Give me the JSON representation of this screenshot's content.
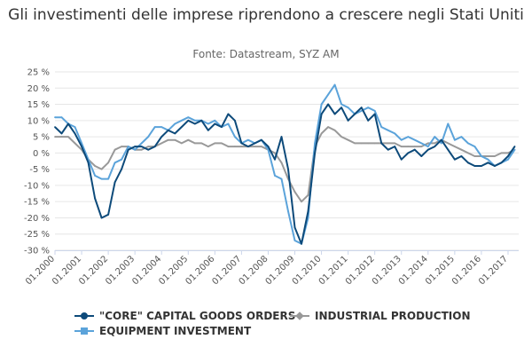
{
  "title": "Gli investimenti delle imprese riprendono a crescere negli Stati Uniti",
  "subtitle": "Fonte: Datastream, SYZ AM",
  "chart_data": {
    "type": "line",
    "title": "Gli investimenti delle imprese riprendono a crescere negli Stati Uniti",
    "subtitle": "Fonte: Datastream, SYZ AM",
    "x": [
      2000.0,
      2000.25,
      2000.5,
      2000.75,
      2001.0,
      2001.25,
      2001.5,
      2001.75,
      2002.0,
      2002.25,
      2002.5,
      2002.75,
      2003.0,
      2003.25,
      2003.5,
      2003.75,
      2004.0,
      2004.25,
      2004.5,
      2004.75,
      2005.0,
      2005.25,
      2005.5,
      2005.75,
      2006.0,
      2006.25,
      2006.5,
      2006.75,
      2007.0,
      2007.25,
      2007.5,
      2007.75,
      2008.0,
      2008.25,
      2008.5,
      2008.75,
      2009.0,
      2009.25,
      2009.5,
      2009.75,
      2010.0,
      2010.25,
      2010.5,
      2010.75,
      2011.0,
      2011.25,
      2011.5,
      2011.75,
      2012.0,
      2012.25,
      2012.5,
      2012.75,
      2013.0,
      2013.25,
      2013.5,
      2013.75,
      2014.0,
      2014.25,
      2014.5,
      2014.75,
      2015.0,
      2015.25,
      2015.5,
      2015.75,
      2016.0,
      2016.25,
      2016.5,
      2016.75,
      2017.0,
      2017.25
    ],
    "x_tick_labels": [
      "01.2000",
      "01.2001",
      "01.2002",
      "01.2003",
      "01.2004",
      "01.2005",
      "01.2006",
      "01.2007",
      "01.2008",
      "01.2009",
      "01.2010",
      "01.2011",
      "01.2012",
      "01.2013",
      "01.2014",
      "01.2015",
      "01.2016",
      "01.2017"
    ],
    "x_ticks": [
      2000,
      2001,
      2002,
      2003,
      2004,
      2005,
      2006,
      2007,
      2008,
      2009,
      2010,
      2011,
      2012,
      2013,
      2014,
      2015,
      2016,
      2017
    ],
    "y_ticks": [
      -30,
      -25,
      -20,
      -15,
      -10,
      -5,
      0,
      5,
      10,
      15,
      20,
      25
    ],
    "y_tick_labels": [
      "-30 %",
      "-25 %",
      "-20 %",
      "-15 %",
      "-10 %",
      "-5 %",
      "0 %",
      "5 %",
      "10 %",
      "15 %",
      "20 %",
      "25 %"
    ],
    "ylim": [
      -30,
      25
    ],
    "xlim": [
      2000,
      2017.4
    ],
    "grid": "horizontal",
    "legend_position": "bottom",
    "series": [
      {
        "name": "\"CORE\" CAPITAL GOODS ORDERS",
        "color": "#0d4a7a",
        "marker": "circle",
        "values": [
          8,
          6,
          9,
          6,
          2,
          -3,
          -14,
          -20,
          -19,
          -9,
          -5,
          1,
          2,
          2,
          1,
          2,
          5,
          7,
          6,
          8,
          10,
          9,
          10,
          7,
          9,
          8,
          12,
          10,
          3,
          2,
          3,
          4,
          2,
          -2,
          5,
          -5,
          -23,
          -28,
          -18,
          0,
          12,
          15,
          12,
          14,
          10,
          12,
          14,
          10,
          12,
          3,
          1,
          2,
          -2,
          0,
          1,
          -1,
          1,
          2,
          4,
          1,
          -2,
          -1,
          -3,
          -4,
          -4,
          -3,
          -4,
          -3,
          -1,
          2
        ]
      },
      {
        "name": "EQUIPMENT INVESTMENT",
        "color": "#5ba3da",
        "marker": "square",
        "values": [
          11,
          11,
          9,
          8,
          3,
          -2,
          -7,
          -8,
          -8,
          -3,
          -2,
          2,
          1,
          3,
          5,
          8,
          8,
          7,
          9,
          10,
          11,
          10,
          10,
          9,
          10,
          8,
          9,
          5,
          3,
          4,
          3,
          4,
          1,
          -7,
          -8,
          -18,
          -27,
          -28,
          -20,
          3,
          15,
          18,
          21,
          15,
          14,
          12,
          13,
          14,
          13,
          8,
          7,
          6,
          4,
          5,
          4,
          3,
          2,
          5,
          3,
          9,
          4,
          5,
          3,
          2,
          -1,
          -2,
          -4,
          -3,
          -2,
          1
        ]
      },
      {
        "name": "INDUSTRIAL PRODUCTION",
        "color": "#999999",
        "marker": "diamond",
        "values": [
          5,
          5,
          5,
          3,
          1,
          -2,
          -4,
          -5,
          -3,
          1,
          2,
          2,
          1,
          1,
          2,
          2,
          3,
          4,
          4,
          3,
          4,
          3,
          3,
          2,
          3,
          3,
          2,
          2,
          2,
          2,
          2,
          2,
          1,
          0,
          -3,
          -8,
          -12,
          -15,
          -13,
          2,
          6,
          8,
          7,
          5,
          4,
          3,
          3,
          3,
          3,
          3,
          3,
          3,
          2,
          2,
          2,
          2,
          3,
          3,
          4,
          3,
          2,
          1,
          0,
          -1,
          -1,
          -1,
          -1,
          0,
          0,
          1
        ]
      }
    ]
  }
}
